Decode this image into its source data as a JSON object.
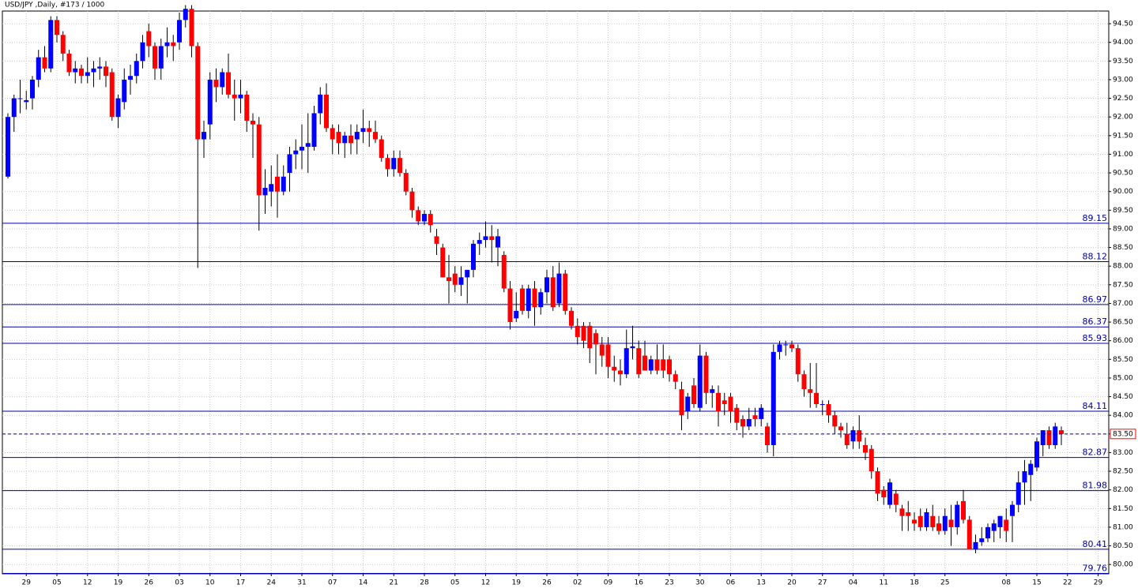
{
  "chart_data": {
    "type": "candlestick",
    "title": "USD/JPY ,Daily, #173 / 1000",
    "up_color": "#0000ff",
    "down_color": "#ff0000",
    "wick_color": "#000000",
    "level_color": "#0000aa",
    "grid": true,
    "ylim": [
      79.75,
      94.84
    ],
    "yticks": [
      {
        "value": 80,
        "label": "80.00"
      },
      {
        "value": 80.5,
        "label": "80.50"
      },
      {
        "value": 81,
        "label": "81.00"
      },
      {
        "value": 81.5,
        "label": "81.50"
      },
      {
        "value": 82,
        "label": "82.00"
      },
      {
        "value": 82.5,
        "label": "82.50"
      },
      {
        "value": 83,
        "label": "83.00"
      },
      {
        "value": 83.5,
        "label": "83.50"
      },
      {
        "value": 84,
        "label": "84.00"
      },
      {
        "value": 84.5,
        "label": "84.50"
      },
      {
        "value": 85,
        "label": "85.00"
      },
      {
        "value": 85.5,
        "label": "85.50"
      },
      {
        "value": 86,
        "label": "86.00"
      },
      {
        "value": 86.5,
        "label": "86.50"
      },
      {
        "value": 87,
        "label": "87.00"
      },
      {
        "value": 87.5,
        "label": "87.50"
      },
      {
        "value": 88,
        "label": "88.00"
      },
      {
        "value": 88.5,
        "label": "88.50"
      },
      {
        "value": 89,
        "label": "89.00"
      },
      {
        "value": 89.5,
        "label": "89.50"
      },
      {
        "value": 90,
        "label": "90.00"
      },
      {
        "value": 90.5,
        "label": "90.50"
      },
      {
        "value": 91,
        "label": "91.00"
      },
      {
        "value": 91.5,
        "label": "91.50"
      },
      {
        "value": 92,
        "label": "92.00"
      },
      {
        "value": 92.5,
        "label": "92.50"
      },
      {
        "value": 93,
        "label": "93.00"
      },
      {
        "value": 93.5,
        "label": "93.50"
      },
      {
        "value": 94,
        "label": "94.00"
      },
      {
        "value": 94.5,
        "label": "94.50"
      }
    ],
    "levels": [
      89.15,
      88.12,
      86.97,
      86.37,
      85.93,
      84.11,
      82.87,
      81.98,
      80.41,
      79.76
    ],
    "current_price": {
      "value": 83.5,
      "label": "83.50"
    },
    "categories": [
      null,
      null,
      null,
      "29",
      null,
      null,
      null,
      null,
      "05",
      null,
      null,
      null,
      null,
      "12",
      null,
      null,
      null,
      null,
      "19",
      null,
      null,
      null,
      null,
      "26",
      null,
      null,
      null,
      null,
      "03",
      null,
      null,
      null,
      null,
      "10",
      null,
      null,
      null,
      null,
      "17",
      null,
      null,
      null,
      null,
      "24",
      null,
      null,
      null,
      null,
      "31",
      null,
      null,
      null,
      null,
      "07",
      null,
      null,
      null,
      null,
      "14",
      null,
      null,
      null,
      null,
      "21",
      null,
      null,
      null,
      null,
      "28",
      null,
      null,
      null,
      null,
      "05",
      null,
      null,
      null,
      null,
      "12",
      null,
      null,
      null,
      null,
      "19",
      null,
      null,
      null,
      null,
      "26",
      null,
      null,
      null,
      null,
      "02",
      null,
      null,
      null,
      null,
      "09",
      null,
      null,
      null,
      null,
      "16",
      null,
      null,
      null,
      null,
      "23",
      null,
      null,
      null,
      null,
      "30",
      null,
      null,
      null,
      null,
      "06",
      null,
      null,
      null,
      null,
      "13",
      null,
      null,
      null,
      null,
      "20",
      null,
      null,
      null,
      null,
      "27",
      null,
      null,
      null,
      null,
      "04",
      null,
      null,
      null,
      null,
      "11",
      null,
      null,
      null,
      null,
      "18",
      null,
      null,
      null,
      null,
      "25",
      null,
      null,
      null,
      null,
      null,
      null,
      null,
      null,
      null,
      "08",
      null,
      null,
      null,
      null,
      "15",
      null,
      null,
      null,
      null,
      "22",
      null,
      null,
      null,
      null,
      "29"
    ],
    "ohlc": [
      [
        90.4,
        92.1,
        90.35,
        92.0
      ],
      [
        92.0,
        92.6,
        91.6,
        92.5
      ],
      [
        92.5,
        93.0,
        92.1,
        92.5
      ],
      [
        92.4,
        92.7,
        92.2,
        92.45
      ],
      [
        92.5,
        93.1,
        92.2,
        93.0
      ],
      [
        93.0,
        93.8,
        92.8,
        93.6
      ],
      [
        93.6,
        93.9,
        93.2,
        93.3
      ],
      [
        93.3,
        94.7,
        93.2,
        94.6
      ],
      [
        94.6,
        94.7,
        94.0,
        94.2
      ],
      [
        94.2,
        94.3,
        93.5,
        93.7
      ],
      [
        93.7,
        93.8,
        93.1,
        93.2
      ],
      [
        93.2,
        93.5,
        92.9,
        93.3
      ],
      [
        93.3,
        93.4,
        92.9,
        93.1
      ],
      [
        93.1,
        93.6,
        92.9,
        93.2
      ],
      [
        93.2,
        93.5,
        92.8,
        93.3
      ],
      [
        93.3,
        93.6,
        93.0,
        93.35
      ],
      [
        93.35,
        93.5,
        92.8,
        93.1
      ],
      [
        93.2,
        93.3,
        91.9,
        92.0
      ],
      [
        92.0,
        92.6,
        91.7,
        92.5
      ],
      [
        92.4,
        93.3,
        92.2,
        93.0
      ],
      [
        93.0,
        93.4,
        92.6,
        93.1
      ],
      [
        93.1,
        93.7,
        92.9,
        93.5
      ],
      [
        93.5,
        94.2,
        93.3,
        94.0
      ],
      [
        94.3,
        94.5,
        93.6,
        93.9
      ],
      [
        93.9,
        94.0,
        93.0,
        93.3
      ],
      [
        93.3,
        94.1,
        93.0,
        93.9
      ],
      [
        93.9,
        94.4,
        93.6,
        94.0
      ],
      [
        94.0,
        94.2,
        93.5,
        93.9
      ],
      [
        94.0,
        94.8,
        93.8,
        94.6
      ],
      [
        94.6,
        95.0,
        94.4,
        94.9
      ],
      [
        94.9,
        95.0,
        93.6,
        93.9
      ],
      [
        93.9,
        94.0,
        87.95,
        91.4
      ],
      [
        91.4,
        91.9,
        90.9,
        91.6
      ],
      [
        91.8,
        93.2,
        91.4,
        93.0
      ],
      [
        93.0,
        93.3,
        92.4,
        92.8
      ],
      [
        92.8,
        93.3,
        92.6,
        93.2
      ],
      [
        93.2,
        93.7,
        92.5,
        92.6
      ],
      [
        92.6,
        93.0,
        91.9,
        92.5
      ],
      [
        92.5,
        93.0,
        92.1,
        92.6
      ],
      [
        92.6,
        92.7,
        91.6,
        91.9
      ],
      [
        91.9,
        92.1,
        90.9,
        91.8
      ],
      [
        91.8,
        92.0,
        88.95,
        89.9
      ],
      [
        89.9,
        90.6,
        89.4,
        90.1
      ],
      [
        90.0,
        90.7,
        89.6,
        90.2
      ],
      [
        90.4,
        91.0,
        89.3,
        90.0
      ],
      [
        90.0,
        90.7,
        89.9,
        90.4
      ],
      [
        90.5,
        91.2,
        90.0,
        91.0
      ],
      [
        91.0,
        91.4,
        90.6,
        91.1
      ],
      [
        91.1,
        91.8,
        90.6,
        91.2
      ],
      [
        91.2,
        92.1,
        90.5,
        91.3
      ],
      [
        91.2,
        92.3,
        91.1,
        92.1
      ],
      [
        92.1,
        92.8,
        91.8,
        92.6
      ],
      [
        92.6,
        92.9,
        91.6,
        91.7
      ],
      [
        91.7,
        91.8,
        91.0,
        91.4
      ],
      [
        91.6,
        91.8,
        91.0,
        91.3
      ],
      [
        91.3,
        91.6,
        90.9,
        91.5
      ],
      [
        91.5,
        91.8,
        91.0,
        91.3
      ],
      [
        91.4,
        91.8,
        91.0,
        91.6
      ],
      [
        91.6,
        92.2,
        91.3,
        91.7
      ],
      [
        91.7,
        91.9,
        91.2,
        91.6
      ],
      [
        91.6,
        91.9,
        91.3,
        91.4
      ],
      [
        91.4,
        91.5,
        90.8,
        90.9
      ],
      [
        90.9,
        91.0,
        90.4,
        90.6
      ],
      [
        90.6,
        91.1,
        90.4,
        90.9
      ],
      [
        90.9,
        91.1,
        90.4,
        90.5
      ],
      [
        90.5,
        90.6,
        89.9,
        90.0
      ],
      [
        90.0,
        90.1,
        89.3,
        89.5
      ],
      [
        89.5,
        89.6,
        89.1,
        89.2
      ],
      [
        89.2,
        89.5,
        89.1,
        89.4
      ],
      [
        89.4,
        89.5,
        88.9,
        89.1
      ],
      [
        88.8,
        89.0,
        88.3,
        88.6
      ],
      [
        88.5,
        88.6,
        87.7,
        87.7
      ],
      [
        87.7,
        88.3,
        87.0,
        87.6
      ],
      [
        87.8,
        88.0,
        87.3,
        87.5
      ],
      [
        87.5,
        88.0,
        87.2,
        87.7
      ],
      [
        87.7,
        87.9,
        87.0,
        87.9
      ],
      [
        87.9,
        88.7,
        87.7,
        88.6
      ],
      [
        88.6,
        88.9,
        88.3,
        88.7
      ],
      [
        88.7,
        89.2,
        88.5,
        88.8
      ],
      [
        88.8,
        89.1,
        88.1,
        88.7
      ],
      [
        88.5,
        89.0,
        88.0,
        88.8
      ],
      [
        88.3,
        88.4,
        87.3,
        87.4
      ],
      [
        87.4,
        87.6,
        86.3,
        86.5
      ],
      [
        86.6,
        87.3,
        86.5,
        86.8
      ],
      [
        87.4,
        87.5,
        86.7,
        86.8
      ],
      [
        86.8,
        87.5,
        86.6,
        87.4
      ],
      [
        87.4,
        87.6,
        86.4,
        86.9
      ],
      [
        86.9,
        87.4,
        86.7,
        87.3
      ],
      [
        87.3,
        87.9,
        87.0,
        87.7
      ],
      [
        87.7,
        88.0,
        86.8,
        86.9
      ],
      [
        87.0,
        88.1,
        86.9,
        87.8
      ],
      [
        87.8,
        87.9,
        86.7,
        86.8
      ],
      [
        86.8,
        86.9,
        86.3,
        86.4
      ],
      [
        86.4,
        86.6,
        85.9,
        86.1
      ],
      [
        86.4,
        86.5,
        85.8,
        86.0
      ],
      [
        86.4,
        86.5,
        85.4,
        85.8
      ],
      [
        86.2,
        86.3,
        85.1,
        85.9
      ],
      [
        85.9,
        86.1,
        85.3,
        85.6
      ],
      [
        85.9,
        86.1,
        85.0,
        85.3
      ],
      [
        85.3,
        85.6,
        84.9,
        85.2
      ],
      [
        85.2,
        85.5,
        84.8,
        85.1
      ],
      [
        85.1,
        86.3,
        85.0,
        85.8
      ],
      [
        85.8,
        86.4,
        85.5,
        85.85
      ],
      [
        85.8,
        86.0,
        85.0,
        85.1
      ],
      [
        85.6,
        86.0,
        85.2,
        85.2
      ],
      [
        85.2,
        85.6,
        85.1,
        85.5
      ],
      [
        85.5,
        85.9,
        85.1,
        85.2
      ],
      [
        85.5,
        85.9,
        85.0,
        85.2
      ],
      [
        85.5,
        85.6,
        84.9,
        85.1
      ],
      [
        85.1,
        85.2,
        84.7,
        84.9
      ],
      [
        84.7,
        84.9,
        83.6,
        84.0
      ],
      [
        84.1,
        84.6,
        83.9,
        84.5
      ],
      [
        84.8,
        85.0,
        84.2,
        84.3
      ],
      [
        84.2,
        85.9,
        84.1,
        85.6
      ],
      [
        85.6,
        85.7,
        84.3,
        84.6
      ],
      [
        84.6,
        84.8,
        84.2,
        84.7
      ],
      [
        84.6,
        84.8,
        83.7,
        84.1
      ],
      [
        84.4,
        84.6,
        84.0,
        84.3
      ],
      [
        84.5,
        84.6,
        83.8,
        84.1
      ],
      [
        84.2,
        84.3,
        83.6,
        83.8
      ],
      [
        83.9,
        84.0,
        83.4,
        83.7
      ],
      [
        83.7,
        84.2,
        83.6,
        83.9
      ],
      [
        84.0,
        84.2,
        83.7,
        83.9
      ],
      [
        83.9,
        84.3,
        83.7,
        84.2
      ],
      [
        83.7,
        83.8,
        83.0,
        83.2
      ],
      [
        83.2,
        85.9,
        82.9,
        85.7
      ],
      [
        85.7,
        86.0,
        85.5,
        85.9
      ],
      [
        85.9,
        86.0,
        85.6,
        85.9
      ],
      [
        85.9,
        86.0,
        85.7,
        85.8
      ],
      [
        85.8,
        85.9,
        84.9,
        85.1
      ],
      [
        85.1,
        85.2,
        84.5,
        84.7
      ],
      [
        84.7,
        85.4,
        84.2,
        84.6
      ],
      [
        84.6,
        85.4,
        84.2,
        84.3
      ],
      [
        84.3,
        84.4,
        84.0,
        84.3
      ],
      [
        84.3,
        84.4,
        83.8,
        84.0
      ],
      [
        84.0,
        84.1,
        83.5,
        83.7
      ],
      [
        83.7,
        83.8,
        83.4,
        83.6
      ],
      [
        83.5,
        83.8,
        83.1,
        83.2
      ],
      [
        83.3,
        83.7,
        83.1,
        83.6
      ],
      [
        83.6,
        84.0,
        83.1,
        83.3
      ],
      [
        83.2,
        83.4,
        82.8,
        83.0
      ],
      [
        83.1,
        83.2,
        82.3,
        82.5
      ],
      [
        82.5,
        82.6,
        81.7,
        81.9
      ],
      [
        82.0,
        82.1,
        81.6,
        81.8
      ],
      [
        81.6,
        82.3,
        81.5,
        82.2
      ],
      [
        81.9,
        82.0,
        81.4,
        81.6
      ],
      [
        81.5,
        81.6,
        80.9,
        81.3
      ],
      [
        81.4,
        81.7,
        80.9,
        81.3
      ],
      [
        81.2,
        81.4,
        80.9,
        81.1
      ],
      [
        81.3,
        81.5,
        80.9,
        81.0
      ],
      [
        81.0,
        81.5,
        80.9,
        81.4
      ],
      [
        81.3,
        81.6,
        80.9,
        81.0
      ],
      [
        81.1,
        81.3,
        80.8,
        80.9
      ],
      [
        80.9,
        81.5,
        80.8,
        81.3
      ],
      [
        81.2,
        81.6,
        80.5,
        81.0
      ],
      [
        81.0,
        81.7,
        80.8,
        81.6
      ],
      [
        81.7,
        82.0,
        81.1,
        81.2
      ],
      [
        81.2,
        81.3,
        80.4,
        80.4
      ],
      [
        80.4,
        80.8,
        80.3,
        80.6
      ],
      [
        80.6,
        81.0,
        80.5,
        80.7
      ],
      [
        80.7,
        81.1,
        80.6,
        81.0
      ],
      [
        80.9,
        81.2,
        80.6,
        81.1
      ],
      [
        81.0,
        81.3,
        80.7,
        81.3
      ],
      [
        81.2,
        81.5,
        80.6,
        80.9
      ],
      [
        81.3,
        81.7,
        80.6,
        81.6
      ],
      [
        81.6,
        82.5,
        81.4,
        82.2
      ],
      [
        82.2,
        82.8,
        81.6,
        82.5
      ],
      [
        82.4,
        82.8,
        81.7,
        82.7
      ],
      [
        82.6,
        83.4,
        82.5,
        83.3
      ],
      [
        83.2,
        83.6,
        82.9,
        83.6
      ],
      [
        83.6,
        83.7,
        83.1,
        83.2
      ],
      [
        83.2,
        83.8,
        83.1,
        83.7
      ],
      [
        83.6,
        83.7,
        83.2,
        83.5
      ],
      null,
      null,
      null,
      null,
      null,
      null
    ]
  }
}
